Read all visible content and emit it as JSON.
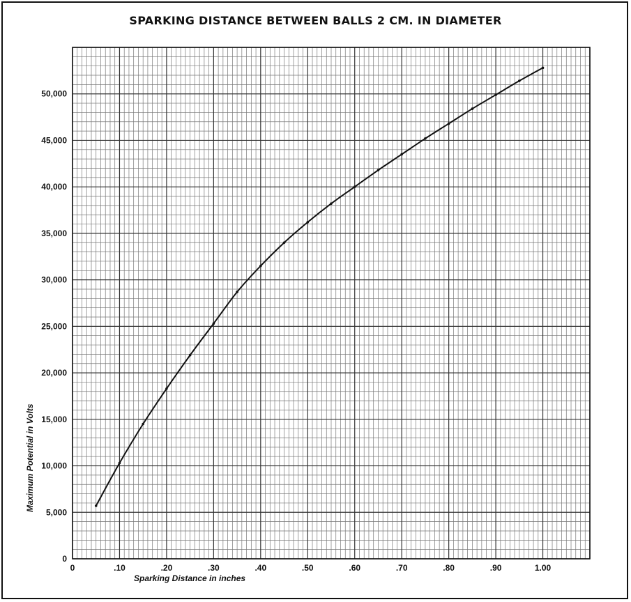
{
  "chart_data": {
    "type": "line",
    "title": "SPARKING DISTANCE BETWEEN BALLS 2 CM. IN DIAMETER",
    "xlabel": "Sparking Distance in inches",
    "ylabel": "Maximum Potential in Volts",
    "xlim": [
      0,
      1.1
    ],
    "ylim": [
      0,
      55000
    ],
    "grid": true,
    "x_tick_labels": [
      "0",
      ".10",
      ".20",
      ".30",
      ".40",
      ".50",
      ".60",
      ".70",
      ".80",
      ".90",
      "1.00"
    ],
    "y_tick_labels": [
      "0",
      "5,000",
      "10,000",
      "15,000",
      "20,000",
      "25,000",
      "30,000",
      "35,000",
      "40,000",
      "45,000",
      "50,000"
    ],
    "series": [
      {
        "x": [
          0.05,
          0.1,
          0.15,
          0.2,
          0.25,
          0.3,
          0.35,
          0.4,
          0.45,
          0.5,
          0.55,
          0.6,
          0.65,
          0.7,
          0.75,
          0.8,
          0.85,
          0.9,
          0.95,
          1.0
        ],
        "y": [
          5700,
          10300,
          14500,
          18300,
          21900,
          25300,
          28700,
          31500,
          34000,
          36200,
          38200,
          40000,
          41800,
          43500,
          45200,
          46800,
          48400,
          49900,
          51400,
          52800
        ]
      }
    ]
  }
}
